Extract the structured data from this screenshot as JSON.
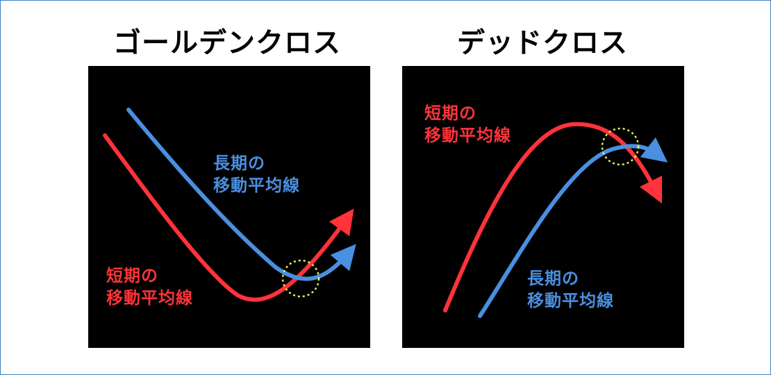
{
  "colors": {
    "short_line": "#ff3339",
    "long_line": "#4a8fe0",
    "cross_marker": "#e6ef5a",
    "panel_bg": "#000000",
    "border": "#3f7fc1"
  },
  "golden_cross": {
    "title": "ゴールデンクロス",
    "short_label_line1": "短期の",
    "short_label_line2": "移動平均線",
    "long_label_line1": "長期の",
    "long_label_line2": "移動平均線"
  },
  "dead_cross": {
    "title": "デッドクロス",
    "short_label_line1": "短期の",
    "short_label_line2": "移動平均線",
    "long_label_line1": "長期の",
    "long_label_line2": "移動平均線"
  }
}
